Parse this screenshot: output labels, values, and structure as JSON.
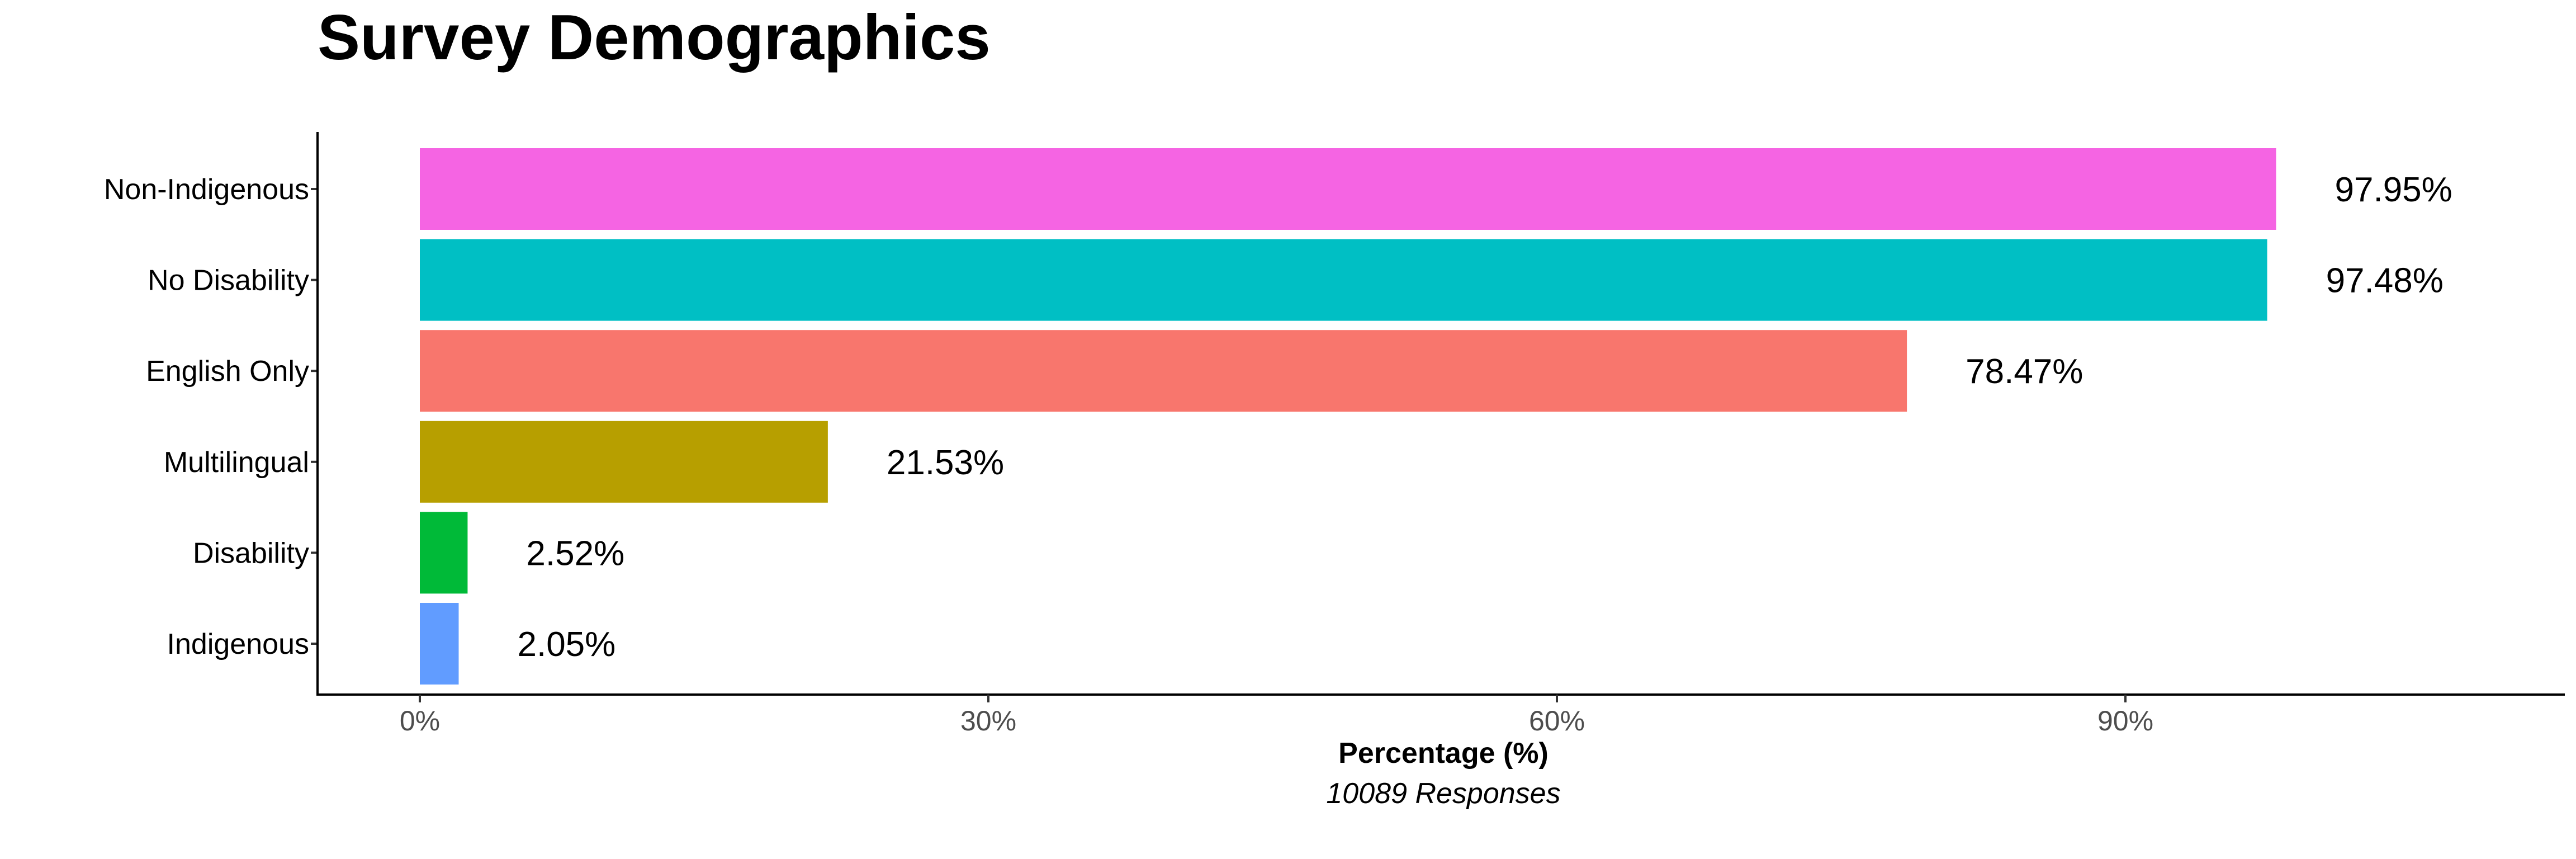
{
  "chart_data": {
    "type": "bar",
    "orientation": "horizontal",
    "title": "Survey Demographics",
    "xlabel": "Percentage (%)",
    "subtitle_bottom": "10089 Responses",
    "ylabel": "",
    "xlim": [
      0,
      110
    ],
    "x_ticks": [
      0,
      30,
      60,
      90
    ],
    "x_tick_labels": [
      "0%",
      "30%",
      "60%",
      "90%"
    ],
    "grid": false,
    "legend": "none",
    "categories": [
      "Non-Indigenous",
      "No Disability",
      "English Only",
      "Multilingual",
      "Disability",
      "Indigenous"
    ],
    "values": [
      97.95,
      97.48,
      78.47,
      21.53,
      2.52,
      2.05
    ],
    "value_labels": [
      "97.95%",
      "97.48%",
      "78.47%",
      "21.53%",
      "2.52%",
      "2.05%"
    ],
    "colors": [
      "#F564E3",
      "#00BFC4",
      "#F8766D",
      "#B79F00",
      "#00BA38",
      "#619CFF"
    ]
  }
}
